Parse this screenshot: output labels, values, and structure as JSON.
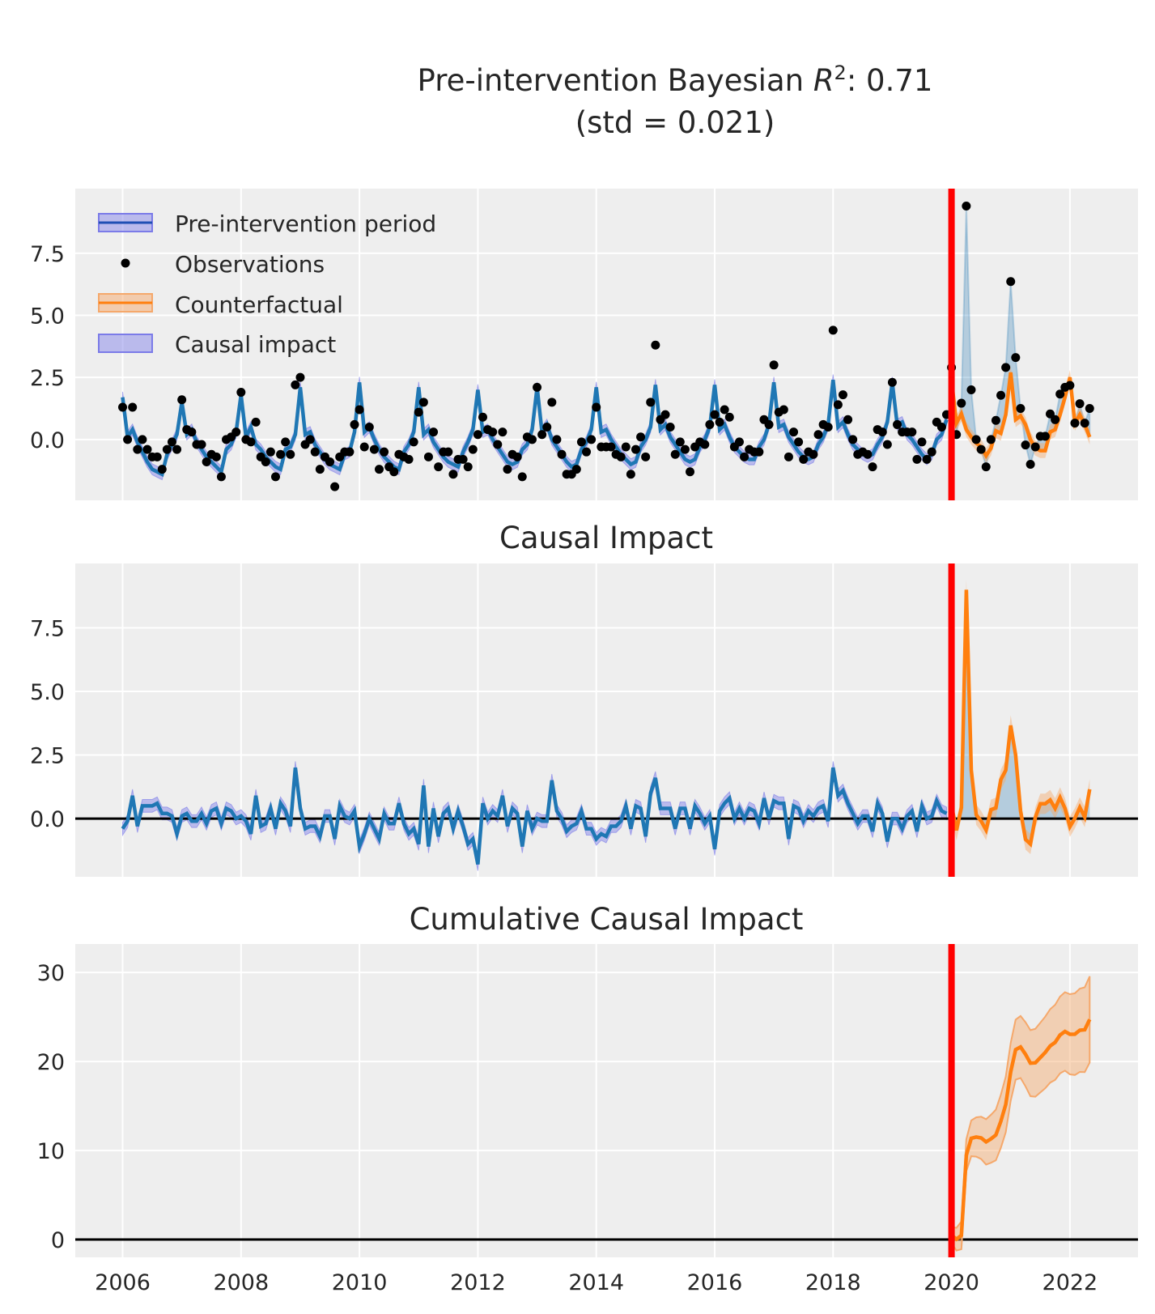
{
  "title": {
    "prefix": "Pre-intervention Bayesian ",
    "symbol": "R",
    "sup": "2",
    "suffix": ": 0.71",
    "line2": "(std = 0.021)"
  },
  "subplot_titles": {
    "impact": "Causal Impact",
    "cumulative": "Cumulative Causal Impact"
  },
  "legend": {
    "placement": "upper-left",
    "items": [
      {
        "label": "Pre-intervention period",
        "marker": "line-with-band",
        "color": "#1f77b4",
        "band_color": "#7b7be8"
      },
      {
        "label": "Observations",
        "marker": "dot",
        "color": "#000000"
      },
      {
        "label": "Counterfactual",
        "marker": "line-with-band",
        "color": "#ff7f0e",
        "band_color": "#f5a86b"
      },
      {
        "label": "Causal impact",
        "marker": "band",
        "color": "#7b7be8"
      }
    ]
  },
  "colors": {
    "pre_line": "#1f77b4",
    "pre_band": "#7b7be8",
    "counterfactual": "#ff7f0e",
    "impact_fill": "#1f77b4",
    "intervention_line": "#ff0000",
    "zero_line": "#000000",
    "panel_bg": "#eeeeee",
    "grid": "#ffffff"
  },
  "chart_data": {
    "type": "line",
    "intervention": 2020.0,
    "x_ticks": [
      "2006",
      "2008",
      "2010",
      "2012",
      "2014",
      "2016",
      "2018",
      "2020",
      "2022"
    ],
    "xlim": [
      2005.2,
      2023.15
    ],
    "grid": true,
    "panels": [
      {
        "id": "fit",
        "ylim": [
          -2.45,
          10.1
        ],
        "y_ticks": [
          "0.0",
          "2.5",
          "5.0",
          "7.5"
        ],
        "y_tick_values": [
          0,
          2.5,
          5,
          7.5
        ]
      },
      {
        "id": "impact",
        "ylim": [
          -2.29,
          10.03
        ],
        "y_ticks": [
          "0.0",
          "2.5",
          "5.0",
          "7.5"
        ],
        "y_tick_values": [
          0,
          2.5,
          5,
          7.5
        ]
      },
      {
        "id": "cumulative",
        "ylim": [
          -2.0,
          33.2
        ],
        "y_ticks": [
          "0",
          "10",
          "20",
          "30"
        ],
        "y_tick_values": [
          0,
          10,
          20,
          30
        ]
      }
    ],
    "monthly_by_year": [
      {
        "year": 2006,
        "prediction": [
          1.7,
          0.1,
          0.4,
          -0.1,
          -0.5,
          -0.9,
          -1.2,
          -1.3,
          -1.4,
          -0.6,
          -0.2,
          0.2
        ],
        "observed": [
          1.3,
          0.0,
          1.3,
          -0.4,
          0.0,
          -0.4,
          -0.7,
          -0.7,
          -1.2,
          -0.4,
          -0.1,
          -0.4
        ]
      },
      {
        "year": 2007,
        "prediction": [
          1.5,
          0.2,
          0.4,
          -0.1,
          -0.4,
          -0.7,
          -0.9,
          -1.1,
          -1.3,
          -0.4,
          -0.2,
          0.3
        ],
        "observed": [
          1.6,
          0.4,
          0.3,
          -0.2,
          -0.2,
          -0.9,
          -0.6,
          -0.7,
          -1.5,
          0.0,
          0.1,
          0.3
        ]
      },
      {
        "year": 2008,
        "prediction": [
          1.8,
          0.1,
          0.5,
          -0.2,
          -0.4,
          -0.7,
          -0.9,
          -1.1,
          -1.2,
          -0.4,
          -0.3,
          0.2
        ],
        "observed": [
          1.9,
          0.0,
          -0.1,
          0.7,
          -0.7,
          -0.9,
          -0.5,
          -1.5,
          -0.6,
          -0.1,
          -0.6,
          2.2
        ]
      },
      {
        "year": 2009,
        "prediction": [
          2.1,
          0.2,
          0.3,
          -0.2,
          -0.5,
          -0.8,
          -1.0,
          -1.1,
          -1.2,
          -0.6,
          -0.5,
          0.3
        ],
        "observed": [
          2.5,
          -0.2,
          0.0,
          -0.5,
          -1.2,
          -0.7,
          -0.9,
          -1.9,
          -0.7,
          -0.5,
          -0.5,
          0.6
        ]
      },
      {
        "year": 2010,
        "prediction": [
          2.3,
          0.3,
          0.5,
          0.0,
          -0.4,
          -0.7,
          -0.9,
          -1.1,
          -1.2,
          -0.5,
          -0.2,
          0.3
        ],
        "observed": [
          1.2,
          -0.3,
          0.5,
          -0.4,
          -1.2,
          -0.5,
          -1.1,
          -1.3,
          -0.6,
          -0.7,
          -0.8,
          -0.1
        ]
      },
      {
        "year": 2011,
        "prediction": [
          2.1,
          0.2,
          0.4,
          -0.1,
          -0.4,
          -0.7,
          -0.9,
          -1.0,
          -1.1,
          -0.5,
          -0.1,
          0.4
        ],
        "observed": [
          1.1,
          1.5,
          -0.7,
          0.3,
          -1.1,
          -0.5,
          -0.5,
          -1.4,
          -0.8,
          -0.8,
          -1.1,
          -0.4
        ]
      },
      {
        "year": 2012,
        "prediction": [
          2.0,
          0.3,
          0.4,
          0.0,
          -0.3,
          -0.6,
          -0.9,
          -1.0,
          -0.9,
          -0.4,
          -0.2,
          0.4
        ],
        "observed": [
          0.2,
          0.9,
          0.4,
          0.3,
          -0.2,
          0.3,
          -1.2,
          -0.6,
          -0.7,
          -1.5,
          0.1,
          0.0
        ]
      },
      {
        "year": 2013,
        "prediction": [
          2.1,
          0.3,
          0.6,
          0.0,
          -0.3,
          -0.6,
          -0.9,
          -1.1,
          -1.0,
          -0.4,
          -0.1,
          0.4
        ],
        "observed": [
          2.1,
          0.2,
          0.5,
          1.5,
          0.0,
          -0.6,
          -1.4,
          -1.4,
          -1.2,
          -0.1,
          -0.5,
          0.0
        ]
      },
      {
        "year": 2014,
        "prediction": [
          2.1,
          0.3,
          0.4,
          0.0,
          -0.3,
          -0.6,
          -0.8,
          -1.0,
          -0.9,
          -0.3,
          0.0,
          0.5
        ],
        "observed": [
          1.3,
          -0.3,
          -0.3,
          -0.3,
          -0.6,
          -0.7,
          -0.3,
          -1.4,
          -0.4,
          0.1,
          -0.7,
          1.5
        ]
      },
      {
        "year": 2015,
        "prediction": [
          2.2,
          0.4,
          0.6,
          0.1,
          -0.2,
          -0.5,
          -0.8,
          -0.9,
          -0.8,
          -0.3,
          0.0,
          0.5
        ],
        "observed": [
          3.8,
          0.8,
          1.0,
          0.5,
          -0.6,
          -0.1,
          -0.4,
          -1.3,
          -0.3,
          -0.1,
          -0.2,
          0.6
        ]
      },
      {
        "year": 2016,
        "prediction": [
          2.2,
          0.4,
          0.6,
          0.1,
          -0.3,
          -0.5,
          -0.7,
          -0.8,
          -0.8,
          -0.3,
          0.0,
          0.6
        ],
        "observed": [
          1.0,
          0.7,
          1.2,
          0.9,
          -0.3,
          -0.1,
          -0.7,
          -0.4,
          -0.5,
          -0.5,
          0.8,
          0.6
        ]
      },
      {
        "year": 2017,
        "prediction": [
          2.3,
          0.5,
          0.6,
          0.1,
          -0.2,
          -0.5,
          -0.7,
          -0.8,
          -0.7,
          -0.2,
          0.1,
          0.6
        ],
        "observed": [
          3.0,
          1.1,
          1.2,
          -0.7,
          0.3,
          -0.1,
          -0.8,
          -0.5,
          -0.6,
          0.2,
          0.6,
          0.5
        ]
      },
      {
        "year": 2018,
        "prediction": [
          2.4,
          0.5,
          0.7,
          0.2,
          -0.2,
          -0.4,
          -0.6,
          -0.7,
          -0.6,
          -0.2,
          0.1,
          0.7
        ],
        "observed": [
          4.4,
          1.4,
          1.8,
          0.8,
          0.0,
          -0.6,
          -0.5,
          -0.6,
          -1.1,
          0.4,
          0.3,
          -0.2
        ]
      },
      {
        "year": 2019,
        "prediction": [
          2.3,
          0.6,
          0.7,
          0.2,
          0.0,
          -0.3,
          -0.6,
          -0.8,
          -0.6,
          0.0,
          0.2,
          0.8
        ],
        "observed": [
          2.3,
          0.6,
          0.3,
          0.3,
          0.3,
          -0.8,
          -0.1,
          -0.8,
          -0.5,
          0.7,
          0.5,
          1.0
        ]
      },
      {
        "year": 2020,
        "prediction": [
          2.4,
          0.66,
          1.03,
          0.4,
          0.1,
          -0.15,
          -0.3,
          -0.65,
          -0.35,
          0.35,
          0.25,
          1.0
        ],
        "observed": [
          2.9,
          0.2,
          1.46,
          9.4,
          2.0,
          0.0,
          -0.4,
          -1.1,
          0.0,
          0.77,
          1.78,
          2.9
        ]
      },
      {
        "year": 2021,
        "prediction": [
          2.7,
          0.8,
          0.95,
          0.6,
          0.0,
          -0.35,
          -0.45,
          -0.45,
          0.3,
          0.4,
          1.0,
          1.7
        ],
        "observed": [
          6.36,
          3.3,
          1.25,
          -0.22,
          -1.0,
          -0.3,
          0.13,
          0.13,
          1.03,
          0.8,
          1.83,
          2.1
        ]
      },
      {
        "year": 2022,
        "prediction": [
          2.5,
          0.65,
          1.0,
          0.6,
          0.1
        ],
        "observed": [
          2.18,
          0.66,
          1.44,
          0.66,
          1.25
        ]
      }
    ],
    "cumulative_post": [
      0.5,
      0.04,
      0.47,
      9.47,
      11.37,
      11.52,
      11.42,
      10.97,
      11.32,
      11.74,
      13.27,
      15.17,
      18.83,
      21.33,
      21.63,
      20.81,
      19.81,
      19.86,
      20.44,
      21.02,
      21.75,
      22.15,
      22.98,
      23.38,
      23.06,
      23.07,
      23.51,
      23.57,
      24.72
    ]
  }
}
